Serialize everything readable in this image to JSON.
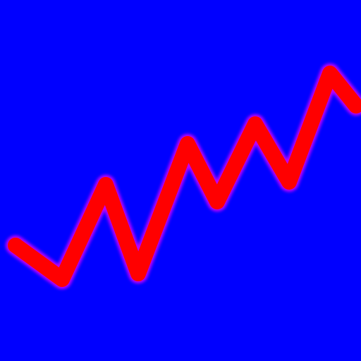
{
  "image": {
    "background_color": "#0000ff",
    "stroke": {
      "color": "#ff0000",
      "edge_glow_color": "#c000ff"
    }
  }
}
